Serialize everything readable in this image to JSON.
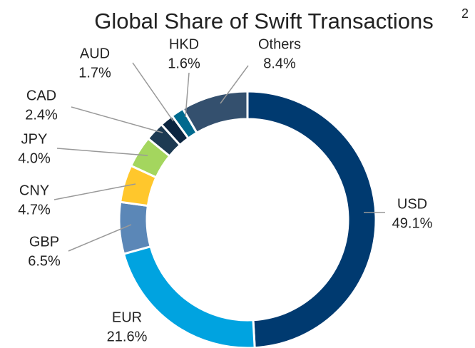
{
  "chart_data": {
    "type": "donut",
    "title": "Global Share of Swift Transactions",
    "title_note": "2",
    "categories": [
      "USD",
      "EUR",
      "GBP",
      "CNY",
      "JPY",
      "CAD",
      "AUD",
      "HKD",
      "Others"
    ],
    "values": [
      49.1,
      21.6,
      6.5,
      4.7,
      4.0,
      2.4,
      1.7,
      1.6,
      8.4
    ],
    "value_labels": [
      "49.1%",
      "21.6%",
      "6.5%",
      "4.7%",
      "4.0%",
      "2.4%",
      "1.7%",
      "1.6%",
      "8.4%"
    ],
    "colors": [
      "#003a70",
      "#00a3e0",
      "#5b87b7",
      "#ffc72c",
      "#a4d65e",
      "#1d3a52",
      "#0b2540",
      "#006a8e",
      "#34506e"
    ]
  }
}
